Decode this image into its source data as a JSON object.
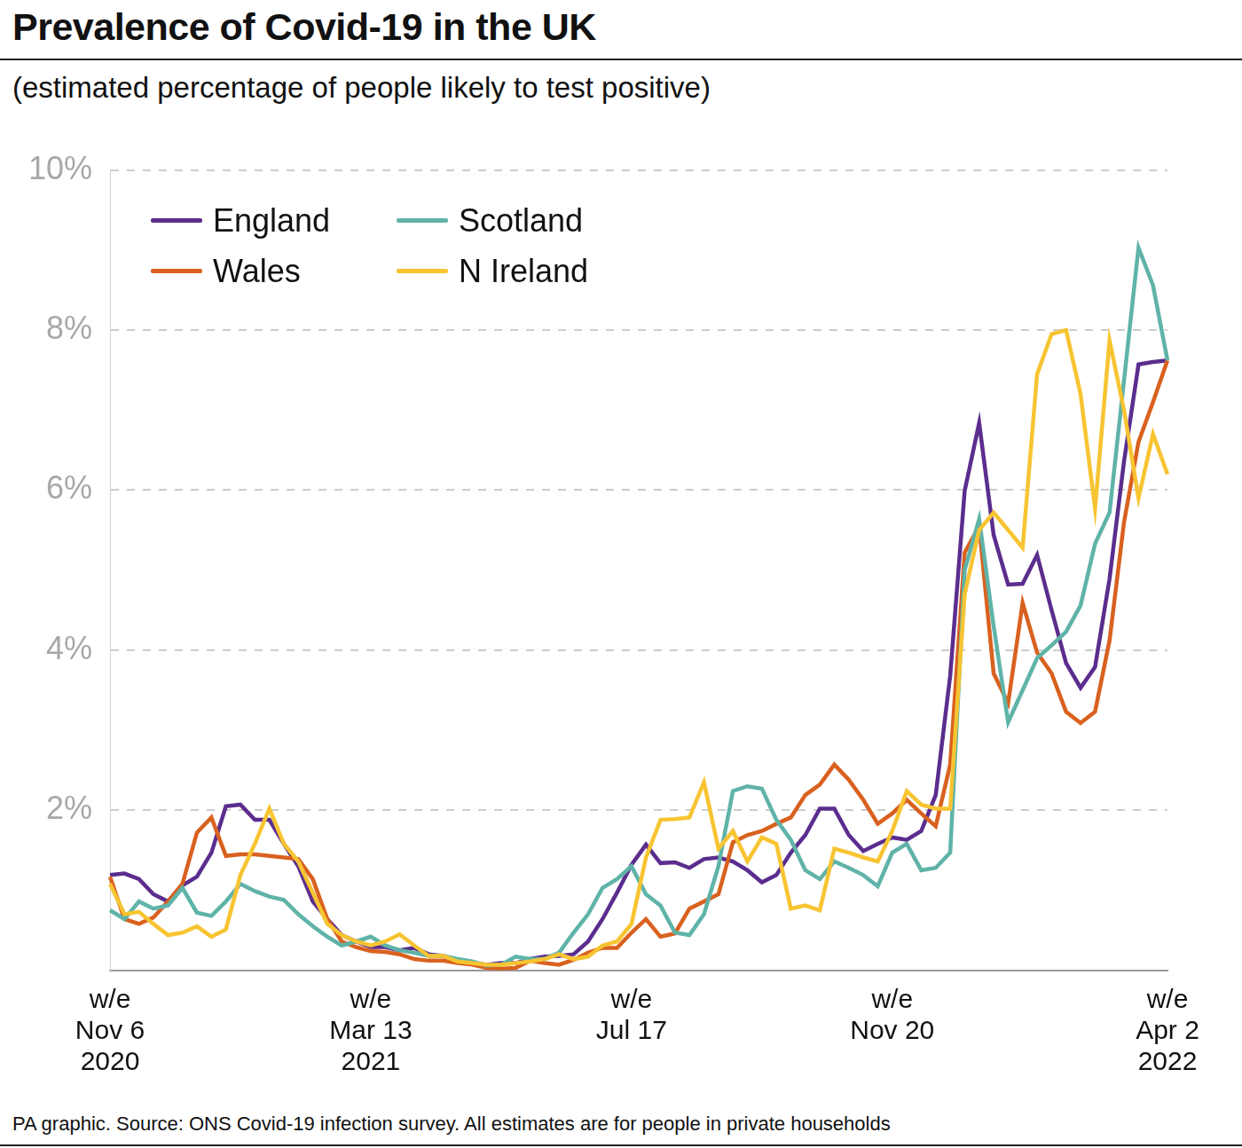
{
  "chart_data": {
    "type": "line",
    "title": "Prevalence of Covid-19 in the UK",
    "subtitle": "(estimated percentage of people likely to test positive)",
    "source": "PA graphic. Source: ONS Covid-19 infection survey. All estimates are for people in private households",
    "categories": [
      "w/e\nNov 6\n2020",
      null,
      null,
      null,
      null,
      null,
      null,
      null,
      null,
      null,
      null,
      null,
      null,
      null,
      null,
      null,
      null,
      null,
      "w/e\nMar 13\n2021",
      null,
      null,
      null,
      null,
      null,
      null,
      null,
      null,
      null,
      null,
      null,
      null,
      null,
      null,
      null,
      null,
      null,
      "w/e\nJul 17",
      null,
      null,
      null,
      null,
      null,
      null,
      null,
      null,
      null,
      null,
      null,
      null,
      null,
      null,
      null,
      null,
      null,
      "w/e\nNov 20",
      null,
      null,
      null,
      null,
      null,
      null,
      null,
      null,
      null,
      null,
      null,
      null,
      null,
      null,
      null,
      null,
      null,
      null,
      "w/e\nApr 2\n2022"
    ],
    "series": [
      {
        "name": "England",
        "color": "#5b2d8e",
        "values": [
          1.19,
          1.21,
          1.14,
          0.95,
          0.86,
          1.06,
          1.17,
          1.47,
          2.05,
          2.07,
          1.88,
          1.88,
          1.58,
          1.3,
          0.86,
          0.64,
          0.44,
          0.36,
          0.29,
          0.29,
          0.25,
          0.28,
          0.2,
          0.18,
          0.11,
          0.09,
          0.07,
          0.09,
          0.09,
          0.14,
          0.17,
          0.18,
          0.2,
          0.36,
          0.64,
          0.97,
          1.32,
          1.57,
          1.34,
          1.35,
          1.28,
          1.39,
          1.41,
          1.36,
          1.25,
          1.1,
          1.19,
          1.47,
          1.69,
          2.02,
          2.02,
          1.69,
          1.49,
          1.58,
          1.66,
          1.63,
          1.74,
          2.19,
          3.68,
          5.99,
          6.84,
          5.44,
          4.82,
          4.83,
          5.19,
          4.5,
          3.84,
          3.53,
          3.79,
          4.89,
          6.36,
          7.57,
          7.6,
          7.62
        ]
      },
      {
        "name": "Wales",
        "color": "#d9611f",
        "values": [
          1.17,
          0.64,
          0.58,
          0.66,
          0.86,
          1.08,
          1.72,
          1.91,
          1.43,
          1.45,
          1.45,
          1.43,
          1.41,
          1.39,
          1.14,
          0.64,
          0.36,
          0.29,
          0.24,
          0.23,
          0.2,
          0.14,
          0.12,
          0.12,
          0.09,
          0.07,
          0.03,
          0.02,
          0.03,
          0.12,
          0.09,
          0.07,
          0.13,
          0.22,
          0.28,
          0.28,
          0.47,
          0.64,
          0.42,
          0.46,
          0.77,
          0.86,
          0.95,
          1.6,
          1.69,
          1.74,
          1.83,
          1.91,
          2.19,
          2.32,
          2.57,
          2.38,
          2.13,
          1.83,
          1.96,
          2.13,
          1.96,
          1.8,
          2.57,
          5.22,
          5.55,
          3.71,
          3.34,
          4.59,
          3.97,
          3.71,
          3.23,
          3.09,
          3.23,
          4.12,
          5.6,
          6.6,
          7.1,
          7.62
        ]
      },
      {
        "name": "Scotland",
        "color": "#5fb3a8",
        "values": [
          0.75,
          0.64,
          0.86,
          0.77,
          0.81,
          1.03,
          0.72,
          0.68,
          0.86,
          1.08,
          0.99,
          0.92,
          0.88,
          0.7,
          0.55,
          0.42,
          0.31,
          0.36,
          0.42,
          0.31,
          0.25,
          0.22,
          0.18,
          0.18,
          0.14,
          0.11,
          0.06,
          0.07,
          0.17,
          0.14,
          0.14,
          0.22,
          0.47,
          0.7,
          1.03,
          1.14,
          1.3,
          0.95,
          0.81,
          0.47,
          0.44,
          0.7,
          1.3,
          2.24,
          2.3,
          2.27,
          1.88,
          1.63,
          1.25,
          1.14,
          1.36,
          1.28,
          1.19,
          1.05,
          1.47,
          1.58,
          1.25,
          1.28,
          1.47,
          5.0,
          5.64,
          4.3,
          3.1,
          3.5,
          3.9,
          4.06,
          4.23,
          4.56,
          5.33,
          5.72,
          7.37,
          9.03,
          8.56,
          7.62
        ]
      },
      {
        "name": "N Ireland",
        "color": "#f7c432",
        "values": [
          1.08,
          0.7,
          0.73,
          0.58,
          0.44,
          0.47,
          0.55,
          0.42,
          0.51,
          1.19,
          1.58,
          2.02,
          1.58,
          1.36,
          0.97,
          0.58,
          0.44,
          0.36,
          0.31,
          0.36,
          0.45,
          0.31,
          0.18,
          0.18,
          0.11,
          0.09,
          0.07,
          0.07,
          0.09,
          0.11,
          0.14,
          0.2,
          0.14,
          0.17,
          0.31,
          0.36,
          0.58,
          1.41,
          1.88,
          1.89,
          1.91,
          2.35,
          1.52,
          1.74,
          1.36,
          1.66,
          1.58,
          0.77,
          0.81,
          0.75,
          1.52,
          1.47,
          1.41,
          1.36,
          1.74,
          2.24,
          2.07,
          2.02,
          2.02,
          4.7,
          5.5,
          5.72,
          5.5,
          5.28,
          7.45,
          7.95,
          8.0,
          7.2,
          5.77,
          7.87,
          7.0,
          5.9,
          6.7,
          6.2
        ]
      }
    ],
    "ylim": [
      0,
      10
    ],
    "yticks": [
      {
        "value": 2,
        "label": "2%"
      },
      {
        "value": 4,
        "label": "4%"
      },
      {
        "value": 6,
        "label": "6%"
      },
      {
        "value": 8,
        "label": "8%"
      },
      {
        "value": 10,
        "label": "10%"
      }
    ],
    "grid": true,
    "legend": "top-left",
    "data_labels": false
  }
}
